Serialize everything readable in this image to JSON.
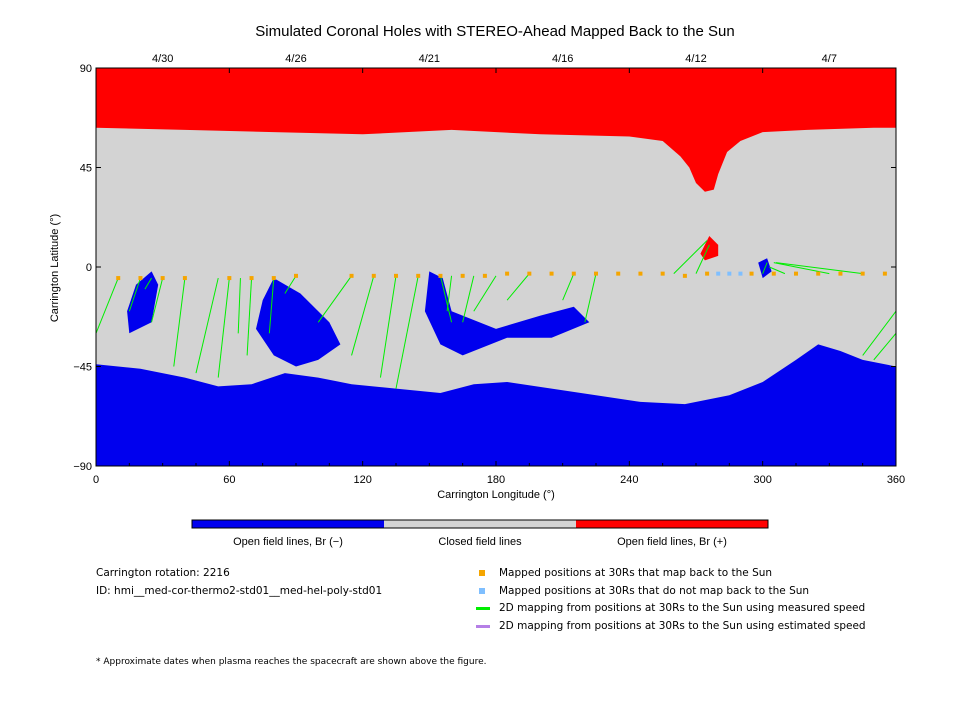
{
  "chart_data": {
    "type": "heatmap",
    "title": "Simulated Coronal Holes with STEREO-Ahead Mapped Back to the Sun",
    "xlabel": "Carrington Longitude (°)",
    "ylabel": "Carrington Latitude (°)",
    "xlim": [
      0,
      360
    ],
    "ylim": [
      -90,
      90
    ],
    "x_ticks": [
      0,
      60,
      120,
      180,
      240,
      300,
      360
    ],
    "y_ticks": [
      -90,
      -45,
      0,
      45,
      90
    ],
    "top_axis_dates": [
      {
        "label": "4/30",
        "lon": 30
      },
      {
        "label": "4/26",
        "lon": 90
      },
      {
        "label": "4/21",
        "lon": 150
      },
      {
        "label": "4/16",
        "lon": 210
      },
      {
        "label": "4/12",
        "lon": 270
      },
      {
        "label": "4/7",
        "lon": 330
      }
    ],
    "colorbar": [
      {
        "label": "Open field lines, Br (−)",
        "color": "#0000ee"
      },
      {
        "label": "Closed field lines",
        "color": "#d3d3d3"
      },
      {
        "label": "Open field lines, Br (+)",
        "color": "#ff0000"
      }
    ],
    "regions": {
      "positive_polar_boundary": [
        [
          0,
          63
        ],
        [
          40,
          62
        ],
        [
          80,
          61
        ],
        [
          120,
          60
        ],
        [
          160,
          62
        ],
        [
          200,
          60
        ],
        [
          240,
          59
        ],
        [
          255,
          57
        ],
        [
          263,
          50
        ],
        [
          267,
          45
        ],
        [
          270,
          38
        ],
        [
          274,
          34
        ],
        [
          278,
          35
        ],
        [
          280,
          42
        ],
        [
          284,
          52
        ],
        [
          290,
          57
        ],
        [
          300,
          61
        ],
        [
          320,
          62
        ],
        [
          350,
          63
        ],
        [
          360,
          63
        ]
      ],
      "negative_polar_boundary": [
        [
          0,
          -44
        ],
        [
          20,
          -46
        ],
        [
          40,
          -50
        ],
        [
          55,
          -54
        ],
        [
          70,
          -53
        ],
        [
          85,
          -48
        ],
        [
          100,
          -50
        ],
        [
          115,
          -53
        ],
        [
          135,
          -55
        ],
        [
          155,
          -57
        ],
        [
          170,
          -53
        ],
        [
          185,
          -52
        ],
        [
          205,
          -55
        ],
        [
          225,
          -58
        ],
        [
          245,
          -61
        ],
        [
          265,
          -62
        ],
        [
          285,
          -58
        ],
        [
          300,
          -52
        ],
        [
          315,
          -42
        ],
        [
          325,
          -35
        ],
        [
          335,
          -38
        ],
        [
          345,
          -42
        ],
        [
          360,
          -45
        ]
      ],
      "negative_holes": [
        [
          [
            18,
            -8
          ],
          [
            25,
            -2
          ],
          [
            28,
            -8
          ],
          [
            25,
            -25
          ],
          [
            15,
            -30
          ],
          [
            14,
            -20
          ]
        ],
        [
          [
            80,
            -5
          ],
          [
            92,
            -12
          ],
          [
            105,
            -25
          ],
          [
            110,
            -35
          ],
          [
            100,
            -42
          ],
          [
            90,
            -45
          ],
          [
            80,
            -40
          ],
          [
            72,
            -28
          ],
          [
            75,
            -15
          ]
        ],
        [
          [
            150,
            -2
          ],
          [
            156,
            -5
          ],
          [
            160,
            -20
          ],
          [
            180,
            -28
          ],
          [
            200,
            -22
          ],
          [
            215,
            -18
          ],
          [
            222,
            -25
          ],
          [
            205,
            -32
          ],
          [
            185,
            -32
          ],
          [
            165,
            -40
          ],
          [
            155,
            -35
          ],
          [
            148,
            -20
          ]
        ],
        [
          [
            298,
            2
          ],
          [
            302,
            4
          ],
          [
            304,
            -2
          ],
          [
            300,
            -5
          ]
        ]
      ],
      "positive_holes": [
        [
          [
            272,
            6
          ],
          [
            276,
            14
          ],
          [
            280,
            10
          ],
          [
            280,
            5
          ],
          [
            274,
            3
          ]
        ]
      ]
    },
    "mapped_points_back": [
      {
        "lon": 10,
        "lat": -5
      },
      {
        "lon": 20,
        "lat": -5
      },
      {
        "lon": 30,
        "lat": -5
      },
      {
        "lon": 40,
        "lat": -5
      },
      {
        "lon": 60,
        "lat": -5
      },
      {
        "lon": 70,
        "lat": -5
      },
      {
        "lon": 80,
        "lat": -5
      },
      {
        "lon": 90,
        "lat": -4
      },
      {
        "lon": 115,
        "lat": -4
      },
      {
        "lon": 125,
        "lat": -4
      },
      {
        "lon": 135,
        "lat": -4
      },
      {
        "lon": 145,
        "lat": -4
      },
      {
        "lon": 155,
        "lat": -4
      },
      {
        "lon": 165,
        "lat": -4
      },
      {
        "lon": 175,
        "lat": -4
      },
      {
        "lon": 185,
        "lat": -3
      },
      {
        "lon": 195,
        "lat": -3
      },
      {
        "lon": 205,
        "lat": -3
      },
      {
        "lon": 215,
        "lat": -3
      },
      {
        "lon": 225,
        "lat": -3
      },
      {
        "lon": 235,
        "lat": -3
      },
      {
        "lon": 245,
        "lat": -3
      },
      {
        "lon": 255,
        "lat": -3
      },
      {
        "lon": 265,
        "lat": -4
      },
      {
        "lon": 275,
        "lat": -3
      },
      {
        "lon": 295,
        "lat": -3
      },
      {
        "lon": 305,
        "lat": -3
      },
      {
        "lon": 315,
        "lat": -3
      },
      {
        "lon": 325,
        "lat": -3
      },
      {
        "lon": 335,
        "lat": -3
      },
      {
        "lon": 345,
        "lat": -3
      },
      {
        "lon": 355,
        "lat": -3
      }
    ],
    "mapped_points_not_back": [
      {
        "lon": 280,
        "lat": -3
      },
      {
        "lon": 285,
        "lat": -3
      },
      {
        "lon": 290,
        "lat": -3
      }
    ],
    "mapping_lines_measured": [
      {
        "from": [
          10,
          -5
        ],
        "to": [
          0,
          -30
        ]
      },
      {
        "from": [
          20,
          -5
        ],
        "to": [
          15,
          -20
        ]
      },
      {
        "from": [
          25,
          -5
        ],
        "to": [
          22,
          -10
        ]
      },
      {
        "from": [
          30,
          -5
        ],
        "to": [
          25,
          -25
        ]
      },
      {
        "from": [
          40,
          -5
        ],
        "to": [
          35,
          -45
        ]
      },
      {
        "from": [
          55,
          -5
        ],
        "to": [
          45,
          -48
        ]
      },
      {
        "from": [
          60,
          -5
        ],
        "to": [
          55,
          -50
        ]
      },
      {
        "from": [
          65,
          -5
        ],
        "to": [
          64,
          -30
        ]
      },
      {
        "from": [
          70,
          -5
        ],
        "to": [
          68,
          -40
        ]
      },
      {
        "from": [
          80,
          -5
        ],
        "to": [
          78,
          -30
        ]
      },
      {
        "from": [
          90,
          -4
        ],
        "to": [
          85,
          -12
        ]
      },
      {
        "from": [
          115,
          -4
        ],
        "to": [
          100,
          -25
        ]
      },
      {
        "from": [
          125,
          -4
        ],
        "to": [
          115,
          -40
        ]
      },
      {
        "from": [
          135,
          -4
        ],
        "to": [
          128,
          -50
        ]
      },
      {
        "from": [
          145,
          -4
        ],
        "to": [
          135,
          -55
        ]
      },
      {
        "from": [
          155,
          -4
        ],
        "to": [
          160,
          -25
        ]
      },
      {
        "from": [
          160,
          -4
        ],
        "to": [
          158,
          -20
        ]
      },
      {
        "from": [
          170,
          -4
        ],
        "to": [
          165,
          -25
        ]
      },
      {
        "from": [
          180,
          -4
        ],
        "to": [
          170,
          -20
        ]
      },
      {
        "from": [
          195,
          -3
        ],
        "to": [
          185,
          -15
        ]
      },
      {
        "from": [
          215,
          -3
        ],
        "to": [
          210,
          -15
        ]
      },
      {
        "from": [
          225,
          -3
        ],
        "to": [
          220,
          -25
        ]
      },
      {
        "from": [
          260,
          -3
        ],
        "to": [
          275,
          12
        ]
      },
      {
        "from": [
          270,
          -3
        ],
        "to": [
          276,
          10
        ]
      },
      {
        "from": [
          300,
          -3
        ],
        "to": [
          302,
          2
        ]
      },
      {
        "from": [
          310,
          -3
        ],
        "to": [
          303,
          0
        ]
      },
      {
        "from": [
          330,
          -3
        ],
        "to": [
          305,
          2
        ]
      },
      {
        "from": [
          345,
          -3
        ],
        "to": [
          306,
          2
        ]
      },
      {
        "from": [
          360,
          -20
        ],
        "to": [
          345,
          -40
        ]
      },
      {
        "from": [
          360,
          -30
        ],
        "to": [
          350,
          -42
        ]
      }
    ]
  },
  "legend": {
    "mapped_back": {
      "label": "Mapped positions at 30Rs that map back to the Sun",
      "color": "#f5a500"
    },
    "not_mapped_back": {
      "label": "Mapped positions at 30Rs that do not map back to the Sun",
      "color": "#7fbfff"
    },
    "measured_speed": {
      "label": "2D mapping from positions at 30Rs to the Sun using measured speed",
      "color": "#00ee00"
    },
    "estimated_speed": {
      "label": "2D mapping from positions at 30Rs to the Sun using estimated speed",
      "color": "#b57fe6"
    }
  },
  "info": {
    "rotation": "Carrington rotation: 2216",
    "model_id": "ID: hmi__med-cor-thermo2-std01__med-hel-poly-std01"
  },
  "footnote": "* Approximate dates when plasma reaches the spacecraft are shown above the figure."
}
